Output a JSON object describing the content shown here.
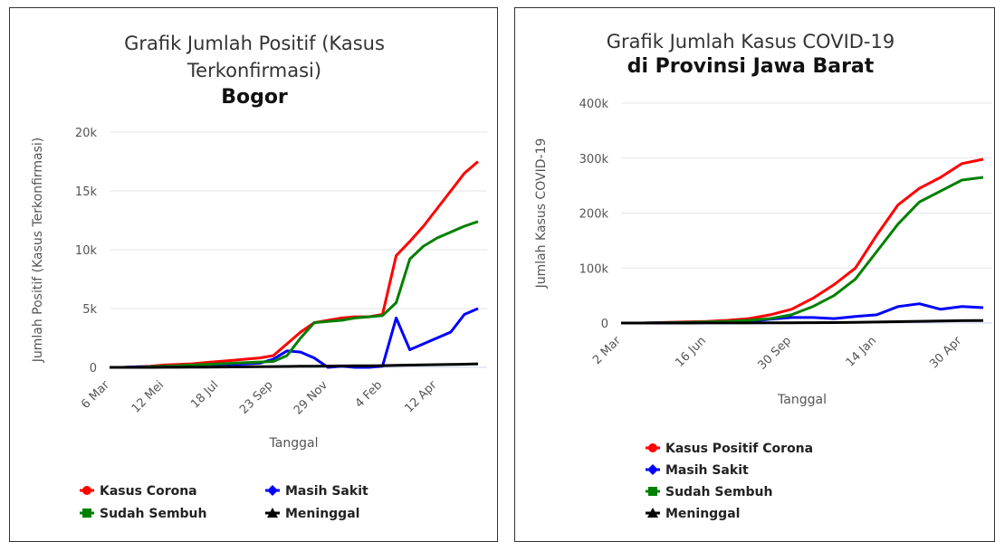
{
  "chart_data": [
    {
      "type": "line",
      "title": "Grafik Jumlah Positif (Kasus Terkonfirmasi)",
      "subtitle": "Bogor",
      "x_label": "Tanggal",
      "y_label": "Jumlah Positif (Kasus Terkonfirmasi)",
      "categories": [
        "6 Mar",
        null,
        null,
        null,
        "12 Mei",
        null,
        null,
        null,
        "18 Jul",
        null,
        null,
        null,
        "23 Sep",
        null,
        null,
        null,
        "29 Nov",
        null,
        null,
        null,
        "4 Feb",
        null,
        null,
        null,
        "12 Apr",
        null,
        null,
        null
      ],
      "ylim": [
        0,
        20000
      ],
      "yticks": [
        0,
        {
          "value": 5000,
          "label": "5k"
        },
        {
          "value": 10000,
          "label": "10k"
        },
        {
          "value": 15000,
          "label": "15k"
        },
        {
          "value": 20000,
          "label": "20k"
        }
      ],
      "grid": true,
      "series": [
        {
          "name": "Kasus Corona",
          "color": "#ff0000",
          "values": [
            0,
            0,
            50,
            100,
            200,
            250,
            300,
            400,
            500,
            600,
            700,
            800,
            1000,
            2000,
            3000,
            3800,
            4000,
            4200,
            4300,
            4300,
            4500,
            9500,
            10700,
            12000,
            13500,
            15000,
            16500,
            17500
          ]
        },
        {
          "name": "Masih Sakit",
          "color": "#0000ff",
          "values": [
            0,
            0,
            50,
            50,
            100,
            100,
            100,
            150,
            200,
            250,
            300,
            350,
            700,
            1400,
            1300,
            800,
            0,
            100,
            0,
            0,
            100,
            4200,
            1500,
            2000,
            2500,
            3000,
            4500,
            5000
          ]
        },
        {
          "name": "Sudah Sembuh",
          "color": "#008000",
          "values": [
            0,
            0,
            0,
            50,
            100,
            150,
            200,
            250,
            300,
            350,
            400,
            450,
            500,
            1000,
            2500,
            3800,
            3900,
            4000,
            4200,
            4300,
            4400,
            5500,
            9200,
            10300,
            11000,
            11500,
            12000,
            12400
          ]
        },
        {
          "name": "Meninggal",
          "color": "#000000",
          "values": [
            0,
            0,
            0,
            0,
            5,
            10,
            15,
            20,
            30,
            40,
            50,
            60,
            70,
            80,
            90,
            100,
            110,
            120,
            130,
            140,
            150,
            170,
            190,
            210,
            230,
            250,
            270,
            300
          ]
        }
      ]
    },
    {
      "type": "line",
      "title": "Grafik Jumlah Kasus COVID-19",
      "subtitle": "di Provinsi Jawa Barat",
      "x_label": "Tanggal",
      "y_label": "Jumlah Kasus COVID-19",
      "categories": [
        "2 Mar",
        null,
        null,
        null,
        "16 Jun",
        null,
        null,
        null,
        "30 Sep",
        null,
        null,
        null,
        "14 Jan",
        null,
        null,
        null,
        "30 Apr",
        null
      ],
      "ylim": [
        0,
        400000
      ],
      "yticks": [
        0,
        {
          "value": 100000,
          "label": "100k"
        },
        {
          "value": 200000,
          "label": "200k"
        },
        {
          "value": 300000,
          "label": "300k"
        },
        {
          "value": 400000,
          "label": "400k"
        }
      ],
      "grid": true,
      "series": [
        {
          "name": "Kasus Positif Corona",
          "color": "#ff0000",
          "values": [
            0,
            0,
            1000,
            2000,
            3000,
            5000,
            8000,
            15000,
            25000,
            45000,
            70000,
            100000,
            160000,
            215000,
            245000,
            265000,
            290000,
            298000
          ]
        },
        {
          "name": "Masih Sakit",
          "color": "#0000ff",
          "values": [
            0,
            0,
            500,
            1000,
            1000,
            2000,
            3000,
            7000,
            10000,
            10000,
            8000,
            12000,
            15000,
            30000,
            35000,
            25000,
            30000,
            28000
          ]
        },
        {
          "name": "Sudah Sembuh",
          "color": "#008000",
          "values": [
            0,
            0,
            500,
            1000,
            2000,
            3000,
            5000,
            8000,
            15000,
            30000,
            50000,
            80000,
            130000,
            180000,
            220000,
            240000,
            260000,
            265000
          ]
        },
        {
          "name": "Meninggal",
          "color": "#000000",
          "values": [
            0,
            0,
            20,
            50,
            100,
            150,
            200,
            300,
            500,
            700,
            900,
            1200,
            1800,
            2500,
            3200,
            3800,
            4300,
            4600
          ]
        }
      ]
    }
  ]
}
